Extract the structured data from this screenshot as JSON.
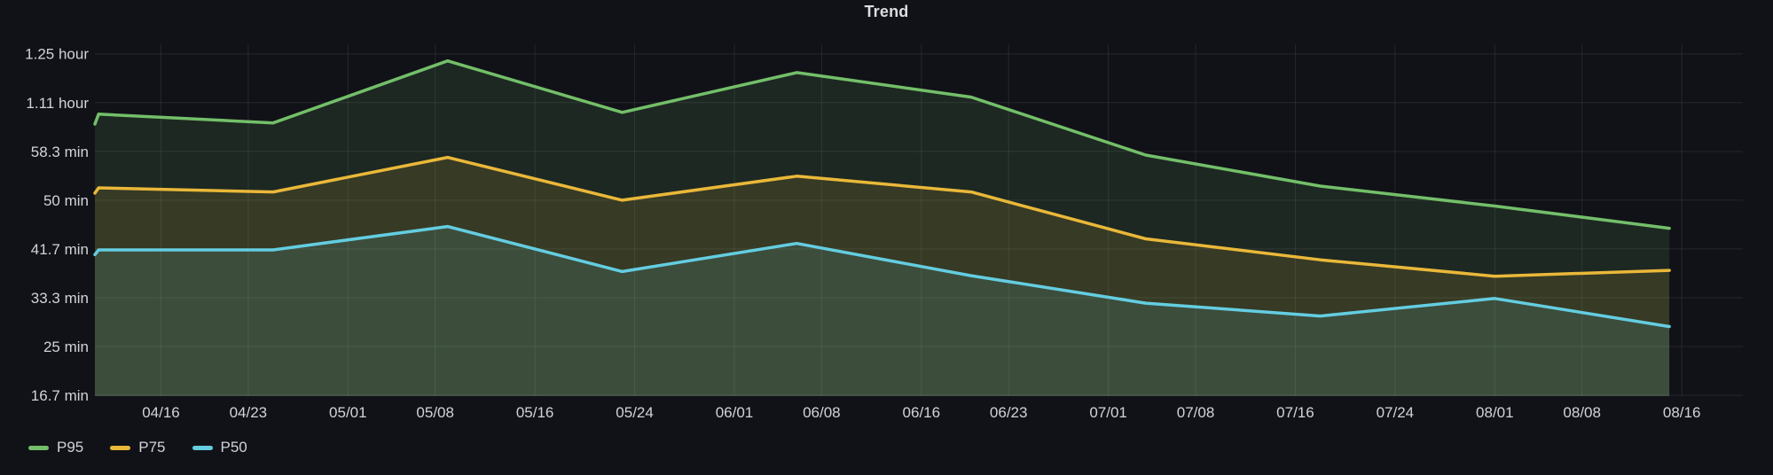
{
  "title": "Trend",
  "colors": {
    "background": "#111217",
    "grid": "rgba(204,204,220,0.11)",
    "tick_text": "#d2d3d9",
    "title_text": "#dcdde1"
  },
  "legend": [
    {
      "label": "P95",
      "color": "#73BF69"
    },
    {
      "label": "P75",
      "color": "#EAB839"
    },
    {
      "label": "P50",
      "color": "#64CDE1"
    }
  ],
  "chart_data": {
    "type": "line",
    "unit": "minutes",
    "title": "Trend",
    "x": [
      "04/10",
      "04/11",
      "04/25",
      "05/09",
      "05/23",
      "06/06",
      "06/20",
      "07/04",
      "07/18",
      "08/01",
      "08/15"
    ],
    "x_days_from_0416": [
      -5.3,
      -5,
      9,
      23,
      37,
      51,
      65,
      79,
      93,
      107,
      121
    ],
    "series": [
      {
        "name": "P95",
        "color": "#73BF69",
        "values": [
          63.0,
          64.7,
          63.2,
          73.8,
          65.0,
          71.8,
          67.6,
          57.7,
          52.4,
          49.0,
          45.2
        ]
      },
      {
        "name": "P75",
        "color": "#EAB839",
        "values": [
          51.2,
          52.1,
          51.4,
          57.3,
          50.0,
          54.1,
          51.4,
          43.4,
          39.8,
          37.0,
          38.0
        ]
      },
      {
        "name": "P50",
        "color": "#64CDE1",
        "values": [
          40.7,
          41.5,
          41.5,
          45.5,
          37.8,
          42.6,
          37.1,
          32.4,
          30.2,
          33.2,
          28.4
        ]
      }
    ],
    "y_ticks": [
      {
        "label": "1.25 hour",
        "value": 75
      },
      {
        "label": "1.11 hour",
        "value": 66.67
      },
      {
        "label": "58.3 min",
        "value": 58.33
      },
      {
        "label": "50 min",
        "value": 50
      },
      {
        "label": "41.7 min",
        "value": 41.67
      },
      {
        "label": "33.3 min",
        "value": 33.33
      },
      {
        "label": "25 min",
        "value": 25
      },
      {
        "label": "16.7 min",
        "value": 16.67
      }
    ],
    "x_ticks": [
      {
        "label": "04/16",
        "day": 0
      },
      {
        "label": "04/23",
        "day": 7
      },
      {
        "label": "05/01",
        "day": 15
      },
      {
        "label": "05/08",
        "day": 22
      },
      {
        "label": "05/16",
        "day": 30
      },
      {
        "label": "05/24",
        "day": 38
      },
      {
        "label": "06/01",
        "day": 46
      },
      {
        "label": "06/08",
        "day": 53
      },
      {
        "label": "06/16",
        "day": 61
      },
      {
        "label": "06/23",
        "day": 68
      },
      {
        "label": "07/01",
        "day": 76
      },
      {
        "label": "07/08",
        "day": 83
      },
      {
        "label": "07/16",
        "day": 91
      },
      {
        "label": "07/24",
        "day": 99
      },
      {
        "label": "08/01",
        "day": 107
      },
      {
        "label": "08/08",
        "day": 114
      },
      {
        "label": "08/16",
        "day": 122
      }
    ],
    "ylim": [
      16.67,
      79.2
    ],
    "x_day_range": [
      -5.3,
      126.9
    ],
    "grid": true,
    "fill_opacity": 0.13,
    "line_width": 3.5,
    "legend_position": "bottom-left"
  }
}
